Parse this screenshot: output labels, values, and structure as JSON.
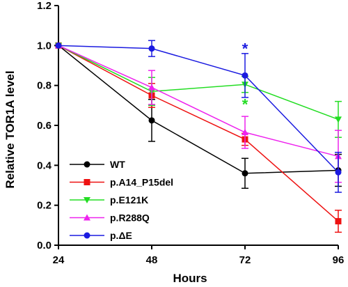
{
  "chart_data": {
    "type": "line",
    "xlabel": "Hours",
    "ylabel": "Relative TOR1A level",
    "x": [
      24,
      48,
      72,
      96
    ],
    "xlim": [
      24,
      96
    ],
    "ylim": [
      0,
      1.2
    ],
    "x_ticks": [
      "24",
      "48",
      "72",
      "96"
    ],
    "y_ticks": [
      "0.0",
      "0.2",
      "0.4",
      "0.6",
      "0.8",
      "1.0",
      "1.2"
    ],
    "legend_position": "bottom-left",
    "series": [
      {
        "name": "WT",
        "color": "#000000",
        "marker": "circle",
        "values": [
          1.0,
          0.625,
          0.36,
          0.375
        ],
        "errors": [
          0,
          0.105,
          0.075,
          0.08
        ]
      },
      {
        "name": "p.A14_P15del",
        "color": "#ee1111",
        "marker": "square",
        "values": [
          1.0,
          0.75,
          0.53,
          0.12
        ],
        "errors": [
          0,
          0.06,
          0.03,
          0.055
        ]
      },
      {
        "name": "p.E121K",
        "color": "#22dd22",
        "marker": "triangle-down",
        "values": [
          1.0,
          0.77,
          0.805,
          0.63
        ],
        "errors": [
          0,
          0.07,
          0.04,
          0.09
        ]
      },
      {
        "name": "p.R288Q",
        "color": "#ee22ee",
        "marker": "triangle-up",
        "values": [
          1.0,
          0.79,
          0.565,
          0.445
        ],
        "errors": [
          0,
          0.085,
          0.08,
          0.13
        ]
      },
      {
        "name": "p.ΔE",
        "color": "#1a1ae0",
        "marker": "circle",
        "values": [
          1.0,
          0.985,
          0.85,
          0.365
        ],
        "errors": [
          0,
          0.04,
          0.11,
          0.1
        ]
      }
    ],
    "annotations": [
      {
        "text": "*",
        "x": 72,
        "y": 1.0,
        "color": "#1a1ae0"
      },
      {
        "text": "*",
        "x": 72,
        "y": 0.72,
        "color": "#22dd22"
      }
    ]
  }
}
